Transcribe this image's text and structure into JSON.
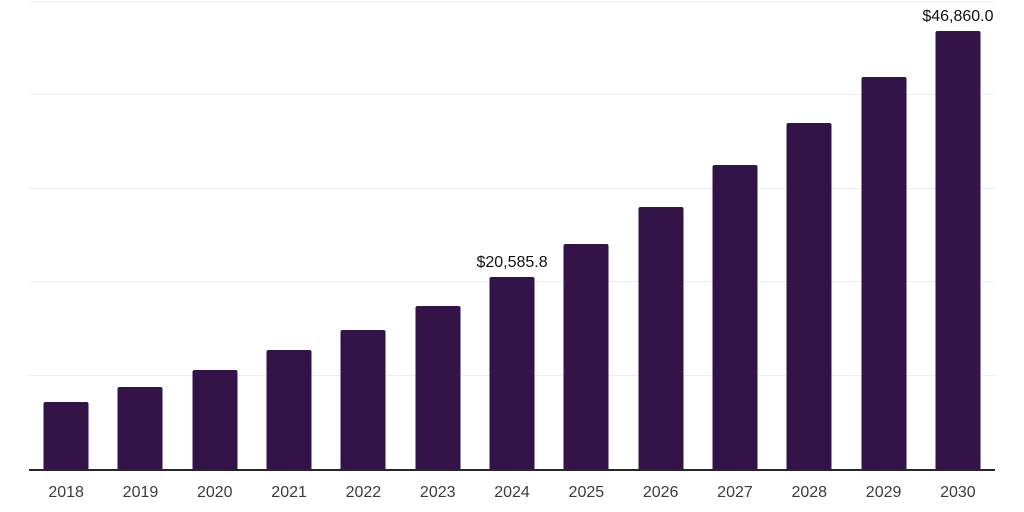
{
  "chart_data": {
    "type": "bar",
    "title": "",
    "xlabel": "",
    "ylabel": "",
    "categories": [
      "2018",
      "2019",
      "2020",
      "2021",
      "2022",
      "2023",
      "2024",
      "2025",
      "2026",
      "2027",
      "2028",
      "2029",
      "2030"
    ],
    "values": [
      7150,
      8750,
      10600,
      12700,
      14900,
      17400,
      20585.8,
      24100,
      28100,
      32500,
      37100,
      42000,
      46860.0
    ],
    "data_labels": [
      null,
      null,
      null,
      null,
      null,
      null,
      "$20,585.8",
      null,
      null,
      null,
      null,
      null,
      "$46,860.0"
    ],
    "ylim": [
      0,
      50000
    ],
    "gridline_values": [
      10000,
      20000,
      30000,
      40000,
      50000
    ],
    "grid": "horizontal",
    "legend": null,
    "colors": {
      "bar": "#341349",
      "axis_line": "#262626",
      "gridline": "#ececec",
      "tick_label": "#3c3c3c",
      "data_label": "#111111",
      "background": "#ffffff"
    }
  }
}
